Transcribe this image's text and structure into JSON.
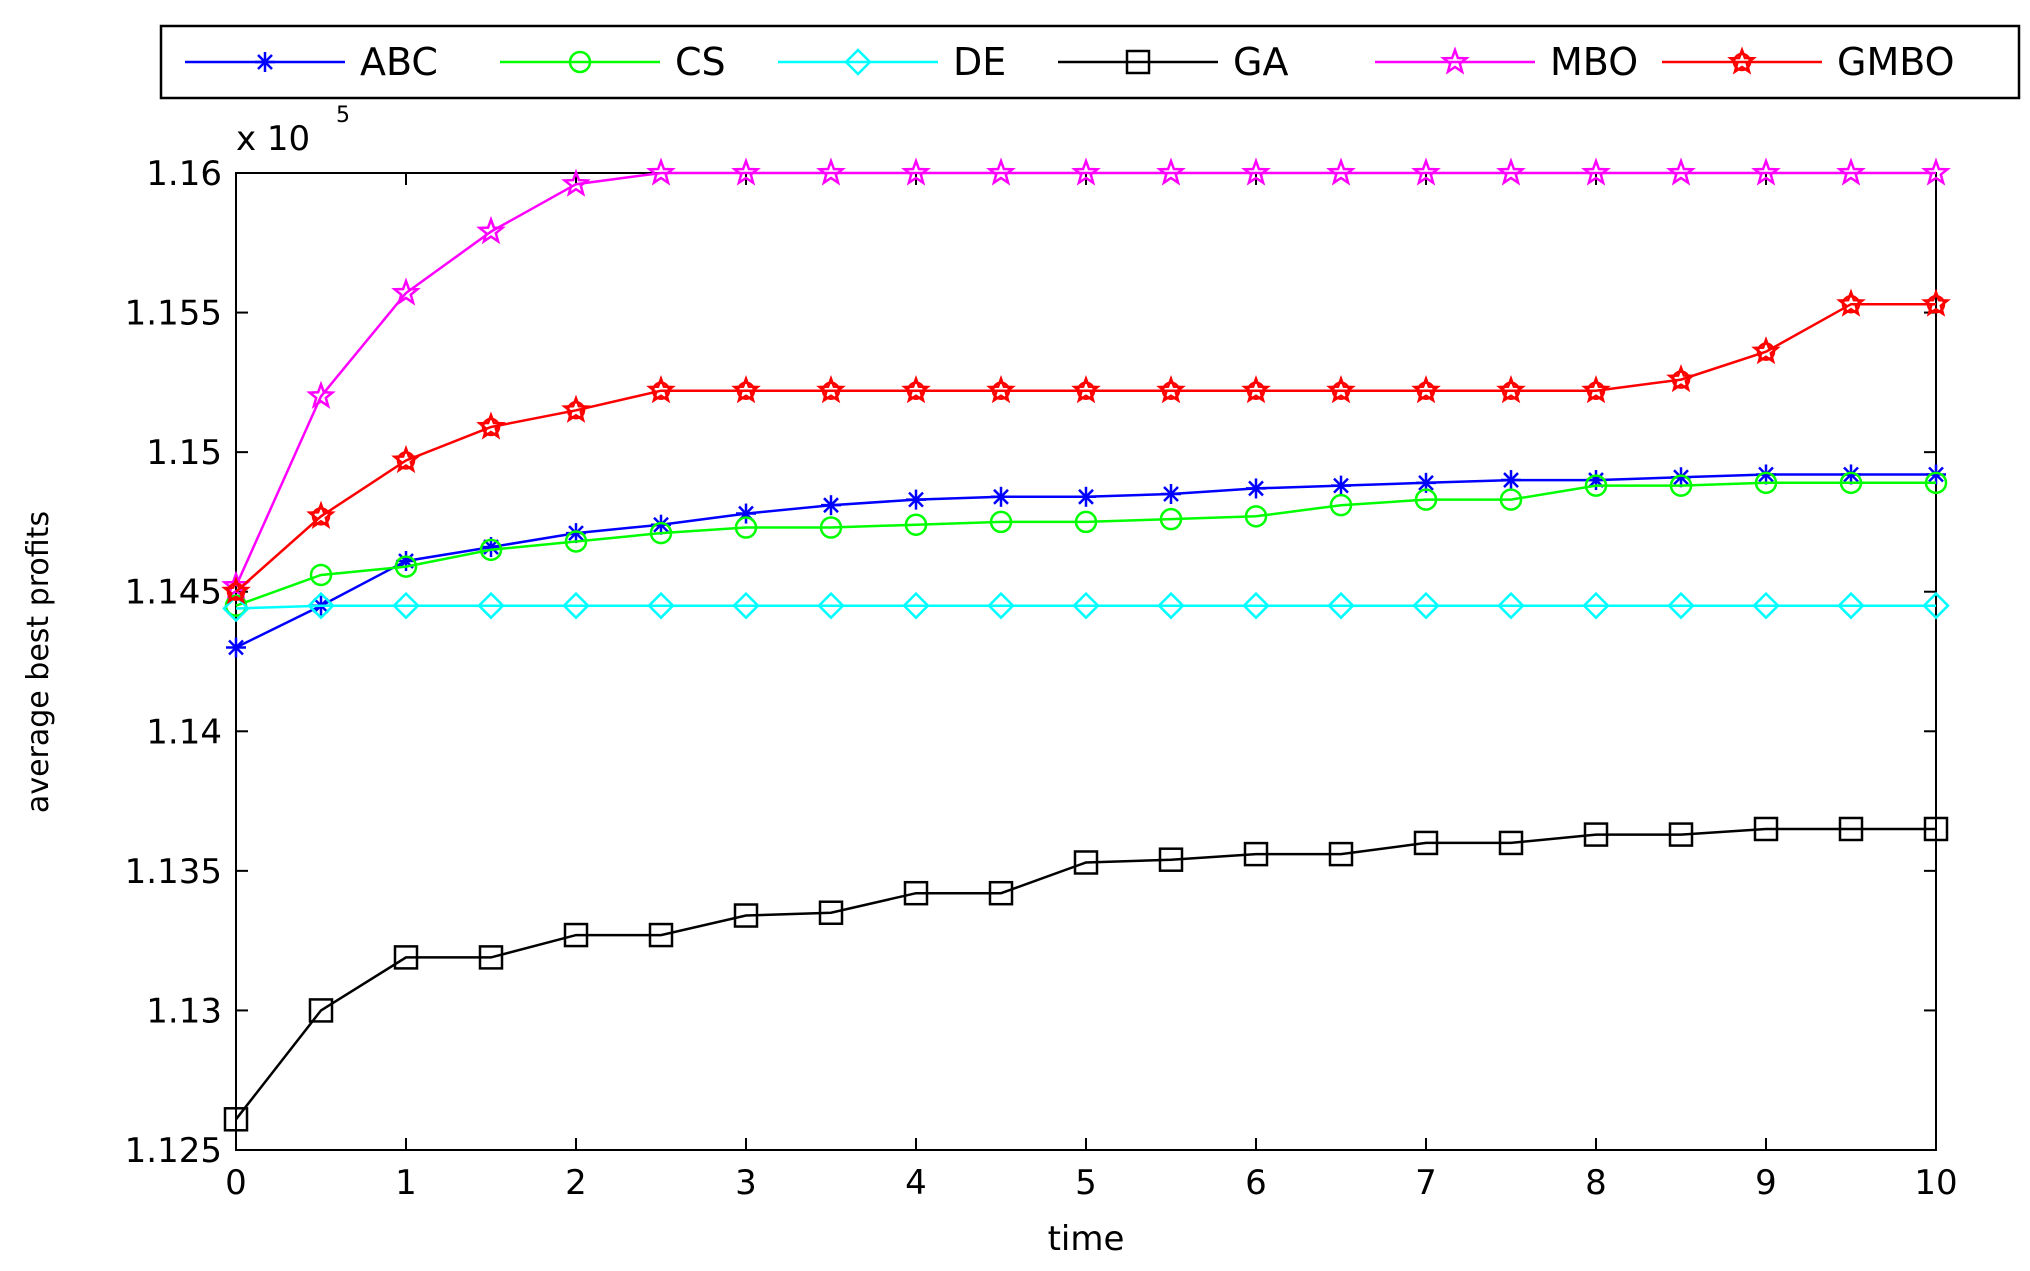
{
  "chart_data": {
    "type": "line",
    "title": "",
    "xlabel": "time",
    "ylabel": "average best profits",
    "multiplier_label": "x 10",
    "multiplier_exponent": "5",
    "xlim": [
      0,
      10
    ],
    "ylim": [
      1.125,
      1.16
    ],
    "xticks": [
      0,
      1,
      2,
      3,
      4,
      5,
      6,
      7,
      8,
      9,
      10
    ],
    "xtick_labels": [
      "0",
      "1",
      "2",
      "3",
      "4",
      "5",
      "6",
      "7",
      "8",
      "9",
      "10"
    ],
    "yticks": [
      1.125,
      1.13,
      1.135,
      1.14,
      1.145,
      1.15,
      1.155,
      1.16
    ],
    "ytick_labels": [
      "1.125",
      "1.13",
      "1.135",
      "1.14",
      "1.145",
      "1.15",
      "1.155",
      "1.16"
    ],
    "grid": false,
    "legend_position": "top, horizontal",
    "x": [
      0,
      0.5,
      1,
      1.5,
      2,
      2.5,
      3,
      3.5,
      4,
      4.5,
      5,
      5.5,
      6,
      6.5,
      7,
      7.5,
      8,
      8.5,
      9,
      9.5,
      10
    ],
    "series": [
      {
        "name": "ABC",
        "color": "#0000ff",
        "marker": "asterisk",
        "values": [
          1.143,
          1.1445,
          1.1461,
          1.1466,
          1.1471,
          1.1474,
          1.1478,
          1.1481,
          1.1483,
          1.1484,
          1.1484,
          1.1485,
          1.1487,
          1.1488,
          1.1489,
          1.149,
          1.149,
          1.1491,
          1.1492,
          1.1492,
          1.1492
        ]
      },
      {
        "name": "CS",
        "color": "#00ff00",
        "marker": "circle",
        "values": [
          1.1445,
          1.1456,
          1.1459,
          1.1465,
          1.1468,
          1.1471,
          1.1473,
          1.1473,
          1.1474,
          1.1475,
          1.1475,
          1.1476,
          1.1477,
          1.1481,
          1.1483,
          1.1483,
          1.1488,
          1.1488,
          1.1489,
          1.1489,
          1.1489
        ]
      },
      {
        "name": "DE",
        "color": "#00ffff",
        "marker": "diamond",
        "values": [
          1.1444,
          1.1445,
          1.1445,
          1.1445,
          1.1445,
          1.1445,
          1.1445,
          1.1445,
          1.1445,
          1.1445,
          1.1445,
          1.1445,
          1.1445,
          1.1445,
          1.1445,
          1.1445,
          1.1445,
          1.1445,
          1.1445,
          1.1445,
          1.1445
        ]
      },
      {
        "name": "GA",
        "color": "#000000",
        "marker": "square",
        "values": [
          1.1261,
          1.13,
          1.1319,
          1.1319,
          1.1327,
          1.1327,
          1.1334,
          1.1335,
          1.1342,
          1.1342,
          1.1353,
          1.1354,
          1.1356,
          1.1356,
          1.136,
          1.136,
          1.1363,
          1.1363,
          1.1365,
          1.1365,
          1.1365
        ]
      },
      {
        "name": "MBO",
        "color": "#ff00ff",
        "marker": "star",
        "values": [
          1.1452,
          1.152,
          1.1557,
          1.1579,
          1.1596,
          1.16,
          1.16,
          1.16,
          1.16,
          1.16,
          1.16,
          1.16,
          1.16,
          1.16,
          1.16,
          1.16,
          1.16,
          1.16,
          1.16,
          1.16,
          1.16
        ]
      },
      {
        "name": "GMBO",
        "color": "#ff0000",
        "marker": "circle-star",
        "values": [
          1.145,
          1.1477,
          1.1497,
          1.1509,
          1.1515,
          1.1522,
          1.1522,
          1.1522,
          1.1522,
          1.1522,
          1.1522,
          1.1522,
          1.1522,
          1.1522,
          1.1522,
          1.1522,
          1.1522,
          1.1526,
          1.1536,
          1.1553,
          1.1553
        ]
      }
    ]
  }
}
